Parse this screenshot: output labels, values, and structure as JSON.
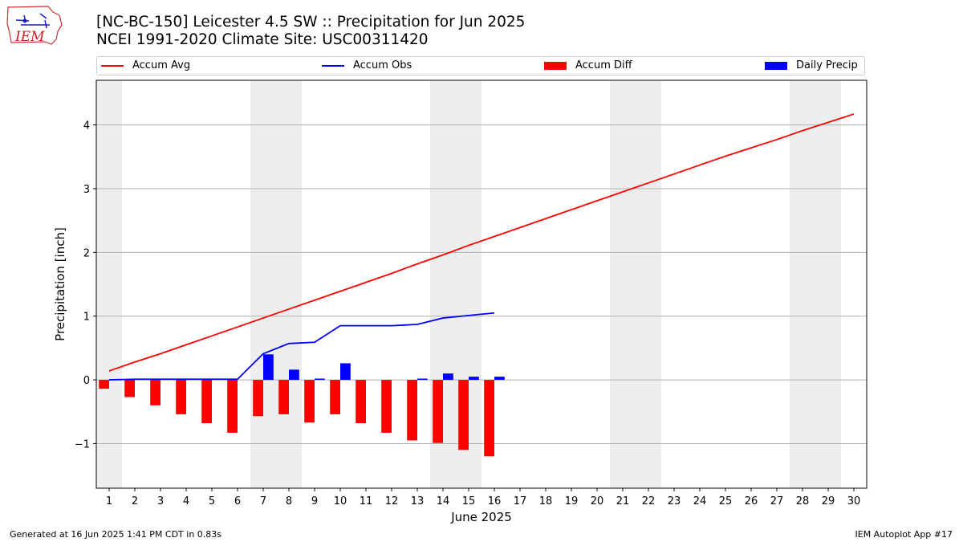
{
  "header": {
    "title_line1": "[NC-BC-150] Leicester 4.5 SW :: Precipitation for Jun 2025",
    "title_line2": "NCEI 1991-2020 Climate Site: USC00311420",
    "logo_text": "IEM"
  },
  "footer": {
    "generated": "Generated at 16 Jun 2025 1:41 PM CDT in 0.83s",
    "app": "IEM Autoplot App #17"
  },
  "colors": {
    "accum_avg": "#ff0000",
    "accum_obs": "#0000ff",
    "accum_diff": "#ff0000",
    "daily_precip": "#0000ff",
    "weekend_shade": "#eeeeee",
    "grid": "#b0b0b0"
  },
  "chart_data": {
    "type": "bar",
    "xlabel": "June 2025",
    "ylabel": "Precipitation [inch]",
    "ylim": [
      -1.7,
      4.7
    ],
    "xlim": [
      0.5,
      30.5
    ],
    "yticks": [
      -1,
      0,
      1,
      2,
      3,
      4
    ],
    "ytick_labels": [
      "−1",
      "0",
      "1",
      "2",
      "3",
      "4"
    ],
    "xticks": [
      1,
      2,
      3,
      4,
      5,
      6,
      7,
      8,
      9,
      10,
      11,
      12,
      13,
      14,
      15,
      16,
      17,
      18,
      19,
      20,
      21,
      22,
      23,
      24,
      25,
      26,
      27,
      28,
      29,
      30
    ],
    "grid": "horizontal",
    "legend_placement": "top",
    "weekend_spans": [
      [
        0.5,
        1.5
      ],
      [
        6.5,
        8.5
      ],
      [
        13.5,
        15.5
      ],
      [
        20.5,
        22.5
      ],
      [
        27.5,
        29.5
      ]
    ],
    "series": [
      {
        "name": "Accum Avg",
        "kind": "line",
        "x": [
          1,
          2,
          3,
          4,
          5,
          6,
          7,
          8,
          9,
          10,
          11,
          12,
          13,
          14,
          15,
          16,
          17,
          18,
          19,
          20,
          21,
          22,
          23,
          24,
          25,
          26,
          27,
          28,
          29,
          30
        ],
        "y": [
          0.14,
          0.28,
          0.41,
          0.55,
          0.69,
          0.83,
          0.97,
          1.11,
          1.25,
          1.39,
          1.53,
          1.67,
          1.82,
          1.96,
          2.11,
          2.25,
          2.39,
          2.53,
          2.67,
          2.81,
          2.95,
          3.09,
          3.23,
          3.37,
          3.51,
          3.64,
          3.77,
          3.91,
          4.04,
          4.17
        ]
      },
      {
        "name": "Accum Obs",
        "kind": "line",
        "x": [
          1,
          2,
          3,
          4,
          5,
          6,
          7,
          8,
          9,
          10,
          11,
          12,
          13,
          14,
          15,
          16
        ],
        "y": [
          0.0,
          0.01,
          0.01,
          0.01,
          0.01,
          0.01,
          0.41,
          0.57,
          0.59,
          0.85,
          0.85,
          0.85,
          0.87,
          0.97,
          1.01,
          1.05
        ]
      },
      {
        "name": "Accum Diff",
        "kind": "bar",
        "x": [
          1,
          2,
          3,
          4,
          5,
          6,
          7,
          8,
          9,
          10,
          11,
          12,
          13,
          14,
          15,
          16
        ],
        "y": [
          -0.14,
          -0.27,
          -0.4,
          -0.54,
          -0.68,
          -0.83,
          -0.57,
          -0.54,
          -0.67,
          -0.54,
          -0.68,
          -0.83,
          -0.95,
          -0.99,
          -1.1,
          -1.2
        ]
      },
      {
        "name": "Daily Precip",
        "kind": "bar",
        "x": [
          1,
          2,
          3,
          4,
          5,
          6,
          7,
          8,
          9,
          10,
          11,
          12,
          13,
          14,
          15,
          16
        ],
        "y": [
          0,
          0,
          0,
          0,
          0,
          0,
          0.4,
          0.16,
          0.02,
          0.26,
          0,
          0,
          0.02,
          0.1,
          0.05,
          0.05
        ]
      }
    ]
  }
}
